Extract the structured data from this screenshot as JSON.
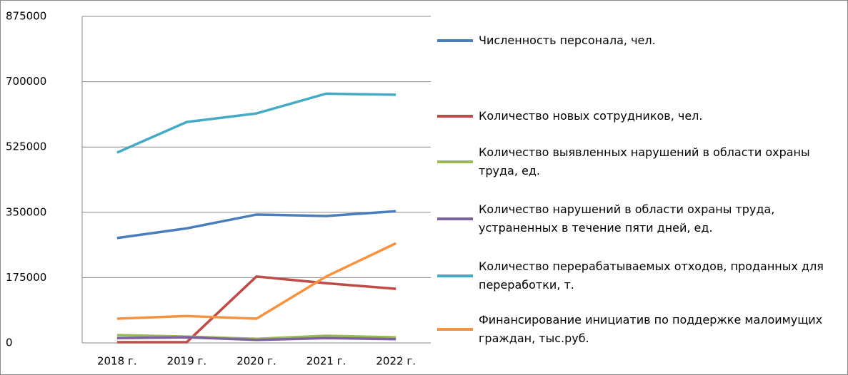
{
  "chart_data": {
    "type": "line",
    "categories": [
      "2018 г.",
      "2019 г.",
      "2020 г.",
      "2021 г.",
      "2022 г."
    ],
    "series": [
      {
        "name": "Численность персонала, чел.",
        "color": "#4a7ebb",
        "values": [
          281000,
          307000,
          344000,
          340000,
          353000
        ]
      },
      {
        "name": "Количество новых сотрудников, чел.",
        "color": "#be4b48",
        "values": [
          2000,
          2000,
          178000,
          160000,
          145000
        ]
      },
      {
        "name": "Количество выявленных нарушений в области охраны труда, ед.",
        "color": "#98b954",
        "values": [
          21000,
          17000,
          11000,
          19000,
          15000
        ]
      },
      {
        "name": "Количество нарушений в области охраны труда, устраненных в течение пяти дней, ед.",
        "color": "#7d60a0",
        "values": [
          13000,
          15000,
          8000,
          13000,
          10000
        ]
      },
      {
        "name": "Количество перерабатываемых отходов, проданных для переработки, т.",
        "color": "#46aac5",
        "values": [
          510000,
          592000,
          615000,
          668000,
          665000
        ]
      },
      {
        "name": "Финансирование инициатив по поддержке малоимущих граждан, тыс.руб.",
        "color": "#f69240",
        "values": [
          65000,
          72000,
          65000,
          178000,
          267000
        ]
      }
    ],
    "ylim": [
      0,
      875000
    ],
    "yticks": [
      0,
      175000,
      350000,
      525000,
      700000,
      875000
    ],
    "grid": true,
    "legend": "right"
  }
}
